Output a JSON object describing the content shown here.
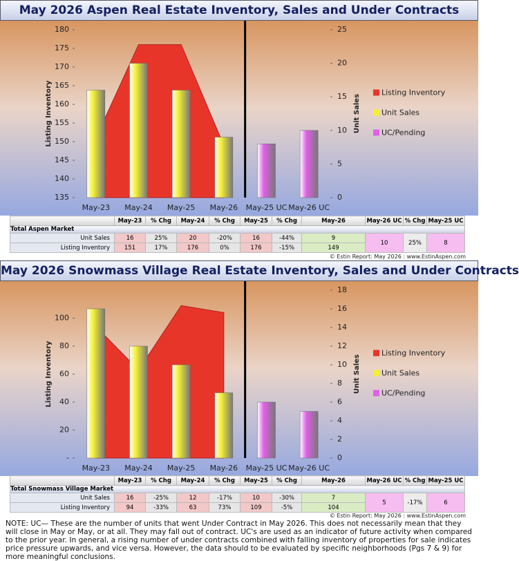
{
  "chart_data": [
    {
      "type": "combo",
      "title": "May 2026 Aspen Real Estate Inventory, Sales and Under Contracts",
      "categories": [
        "May-23",
        "May-24",
        "May-25",
        "May-26",
        "May-25 UC",
        "May-26 UC"
      ],
      "ylabel": "Listing Inventory",
      "y2label": "Unit Sales",
      "ylim": [
        135,
        180
      ],
      "yticks": [
        135,
        140,
        145,
        150,
        155,
        160,
        165,
        170,
        175,
        180
      ],
      "y2lim": [
        0,
        25
      ],
      "y2ticks": [
        0,
        5,
        10,
        15,
        20,
        25
      ],
      "series": [
        {
          "name": "Listing Inventory",
          "type": "area",
          "color": "#e8352a",
          "values": [
            151,
            176,
            176,
            149,
            null,
            null
          ]
        },
        {
          "name": "Unit Sales",
          "type": "bar",
          "axis": "y2",
          "color": "#f4f030",
          "values": [
            16,
            20,
            16,
            9,
            null,
            null
          ]
        },
        {
          "name": "UC/Pending",
          "type": "bar",
          "axis": "y2",
          "color": "#e060e8",
          "values": [
            null,
            null,
            null,
            null,
            8,
            10
          ]
        }
      ]
    },
    {
      "type": "combo",
      "title": "May 2026 Snowmass Village Real Estate Inventory, Sales and Under Contracts",
      "categories": [
        "May-23",
        "May-24",
        "May-25",
        "May-26",
        "May-25 UC",
        "May-26 UC"
      ],
      "ylabel": "Listing Inventory",
      "y2label": "Unit Sales",
      "ylim": [
        0,
        120
      ],
      "yticks": [
        {
          "value": 0,
          "label": "-"
        },
        20,
        40,
        60,
        80,
        100
      ],
      "y2lim": [
        0,
        18
      ],
      "y2ticks": [
        0,
        2,
        4,
        6,
        8,
        10,
        12,
        14,
        16,
        18
      ],
      "series": [
        {
          "name": "Listing Inventory",
          "type": "area",
          "color": "#e8352a",
          "values": [
            94,
            63,
            109,
            104,
            null,
            null
          ]
        },
        {
          "name": "Unit Sales",
          "type": "bar",
          "axis": "y2",
          "color": "#f4f030",
          "values": [
            16,
            12,
            10,
            7,
            null,
            null
          ]
        },
        {
          "name": "UC/Pending",
          "type": "bar",
          "axis": "y2",
          "color": "#e060e8",
          "values": [
            null,
            null,
            null,
            null,
            6,
            5
          ]
        }
      ]
    }
  ],
  "tables": [
    {
      "columns": [
        "May-23",
        "% Chg",
        "May-24",
        "% Chg",
        "May-25",
        "% Chg",
        "May-26",
        "May-26 UC",
        "% Chg",
        "May-25 UC"
      ],
      "section": "Total Aspen Market",
      "rows": [
        {
          "label": "Unit Sales",
          "cells": [
            "16",
            "25%",
            "20",
            "-20%",
            "16",
            "-44%",
            "9",
            "10",
            "25%",
            "8"
          ]
        },
        {
          "label": "Listing Inventory",
          "cells": [
            "151",
            "17%",
            "176",
            "0%",
            "176",
            "-15%",
            "149"
          ]
        }
      ]
    },
    {
      "columns": [
        "May-23",
        "% Chg",
        "May-24",
        "% Chg",
        "May-25",
        "% Chg",
        "May-26",
        "May-26 UC",
        "% Chg",
        "May-25 UC"
      ],
      "section": "Total Snowmass Village Market",
      "rows": [
        {
          "label": "Unit Sales",
          "cells": [
            "16",
            "-25%",
            "12",
            "-17%",
            "10",
            "-30%",
            "7",
            "5",
            "-17%",
            "6"
          ]
        },
        {
          "label": "Listing Inventory",
          "cells": [
            "94",
            "-33%",
            "63",
            "73%",
            "109",
            "-5%",
            "104"
          ]
        }
      ]
    }
  ],
  "copyright": [
    "© Estin Report: May 2026 : www.EstinAspen.com",
    "© Estin Report: May 2026 : www.EstinAspen.com"
  ],
  "note": "NOTE: UC— These are the number of units that went Under Contract in May 2026. This does not necessarily mean that they will close in May or May, or at all. They may fall out of contract. UC's are used as an indicator of future activity when compared to the prior year. In general, a rising number of under contracts combined with falling inventory of properties for sale indicates price pressure upwards, and vice versa. However, the data should to be evaluated by specific neighborhoods (Pgs 7 & 9) for more meaningful conclusions."
}
